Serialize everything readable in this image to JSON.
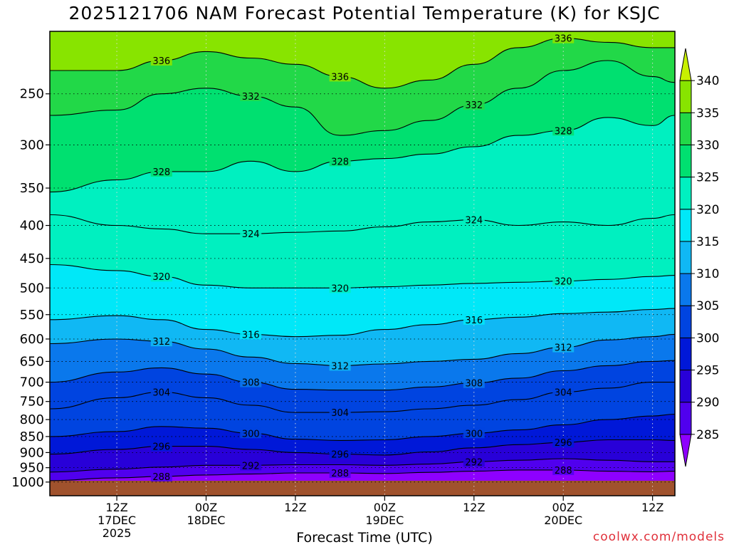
{
  "chart_data": {
    "type": "heatmap",
    "title": "2025121706 NAM Forecast Potential Temperature (K) for KSJC",
    "xlabel": "Forecast Time (UTC)",
    "ylabel": "",
    "y_scale": "log-pressure",
    "y_ticks": [
      250,
      300,
      350,
      400,
      450,
      500,
      550,
      600,
      650,
      700,
      750,
      800,
      850,
      900,
      950,
      1000
    ],
    "y_top_pressure": 200,
    "y_bottom_pressure": 1050,
    "x_range_hours": [
      -3,
      81
    ],
    "x_ticks": [
      {
        "hour": 6,
        "lines": [
          "12Z",
          "17DEC",
          "2025"
        ]
      },
      {
        "hour": 18,
        "lines": [
          "00Z",
          "18DEC"
        ]
      },
      {
        "hour": 30,
        "lines": [
          "12Z"
        ]
      },
      {
        "hour": 42,
        "lines": [
          "00Z",
          "19DEC"
        ]
      },
      {
        "hour": 54,
        "lines": [
          "12Z"
        ]
      },
      {
        "hour": 66,
        "lines": [
          "00Z",
          "20DEC"
        ]
      },
      {
        "hour": 78,
        "lines": [
          "12Z"
        ]
      }
    ],
    "grid": true,
    "colorbar": {
      "levels": [
        285,
        290,
        295,
        300,
        305,
        310,
        315,
        320,
        325,
        330,
        335,
        340
      ],
      "colors": [
        "#8e00ff",
        "#5000ee",
        "#2800d8",
        "#0018d8",
        "#0044e0",
        "#0a78ec",
        "#10b8f4",
        "#00e8f8",
        "#00f0c0",
        "#00e070",
        "#22d848",
        "#88e400",
        "#c8f000"
      ]
    },
    "contours": [
      {
        "value": 288,
        "series": [
          [
            -3,
            995
          ],
          [
            6,
            985
          ],
          [
            12,
            980
          ],
          [
            18,
            975
          ],
          [
            24,
            972
          ],
          [
            30,
            968
          ],
          [
            36,
            968
          ],
          [
            42,
            970
          ],
          [
            48,
            966
          ],
          [
            54,
            962
          ],
          [
            60,
            958
          ],
          [
            66,
            958
          ],
          [
            72,
            962
          ],
          [
            78,
            964
          ],
          [
            81,
            962
          ]
        ]
      },
      {
        "value": 292,
        "series": [
          [
            -3,
            965
          ],
          [
            6,
            955
          ],
          [
            12,
            948
          ],
          [
            18,
            942
          ],
          [
            24,
            942
          ],
          [
            30,
            940
          ],
          [
            36,
            940
          ],
          [
            42,
            942
          ],
          [
            48,
            938
          ],
          [
            54,
            930
          ],
          [
            60,
            925
          ],
          [
            66,
            920
          ],
          [
            72,
            925
          ],
          [
            78,
            930
          ],
          [
            81,
            930
          ]
        ]
      },
      {
        "value": 296,
        "series": [
          [
            -3,
            905
          ],
          [
            6,
            890
          ],
          [
            12,
            880
          ],
          [
            18,
            880
          ],
          [
            24,
            890
          ],
          [
            30,
            900
          ],
          [
            36,
            905
          ],
          [
            42,
            908
          ],
          [
            48,
            898
          ],
          [
            54,
            885
          ],
          [
            60,
            875
          ],
          [
            66,
            868
          ],
          [
            72,
            860
          ],
          [
            78,
            860
          ],
          [
            81,
            862
          ]
        ]
      },
      {
        "value": 300,
        "series": [
          [
            -3,
            850
          ],
          [
            6,
            835
          ],
          [
            12,
            820
          ],
          [
            18,
            825
          ],
          [
            24,
            840
          ],
          [
            30,
            858
          ],
          [
            36,
            862
          ],
          [
            42,
            860
          ],
          [
            48,
            850
          ],
          [
            54,
            840
          ],
          [
            60,
            830
          ],
          [
            66,
            815
          ],
          [
            72,
            800
          ],
          [
            78,
            790
          ],
          [
            81,
            785
          ]
        ]
      },
      {
        "value": 304,
        "series": [
          [
            -3,
            770
          ],
          [
            6,
            740
          ],
          [
            12,
            725
          ],
          [
            18,
            740
          ],
          [
            24,
            760
          ],
          [
            30,
            780
          ],
          [
            36,
            780
          ],
          [
            42,
            778
          ],
          [
            48,
            770
          ],
          [
            54,
            760
          ],
          [
            60,
            745
          ],
          [
            66,
            725
          ],
          [
            72,
            715
          ],
          [
            78,
            700
          ],
          [
            81,
            700
          ]
        ]
      },
      {
        "value": 308,
        "series": [
          [
            -3,
            700
          ],
          [
            6,
            675
          ],
          [
            12,
            665
          ],
          [
            18,
            680
          ],
          [
            24,
            700
          ],
          [
            30,
            718
          ],
          [
            36,
            720
          ],
          [
            42,
            720
          ],
          [
            48,
            712
          ],
          [
            54,
            702
          ],
          [
            60,
            690
          ],
          [
            66,
            672
          ],
          [
            72,
            660
          ],
          [
            78,
            650
          ],
          [
            81,
            648
          ]
        ]
      },
      {
        "value": 312,
        "series": [
          [
            -3,
            610
          ],
          [
            6,
            600
          ],
          [
            12,
            605
          ],
          [
            18,
            622
          ],
          [
            24,
            640
          ],
          [
            30,
            655
          ],
          [
            36,
            660
          ],
          [
            42,
            656
          ],
          [
            48,
            650
          ],
          [
            54,
            645
          ],
          [
            60,
            632
          ],
          [
            66,
            618
          ],
          [
            72,
            602
          ],
          [
            78,
            595
          ],
          [
            81,
            590
          ]
        ]
      },
      {
        "value": 316,
        "series": [
          [
            -3,
            560
          ],
          [
            6,
            552
          ],
          [
            12,
            560
          ],
          [
            18,
            580
          ],
          [
            24,
            590
          ],
          [
            30,
            595
          ],
          [
            36,
            592
          ],
          [
            42,
            580
          ],
          [
            48,
            570
          ],
          [
            54,
            560
          ],
          [
            60,
            555
          ],
          [
            66,
            548
          ],
          [
            72,
            545
          ],
          [
            78,
            540
          ],
          [
            81,
            538
          ]
        ]
      },
      {
        "value": 320,
        "series": [
          [
            -3,
            460
          ],
          [
            6,
            470
          ],
          [
            12,
            480
          ],
          [
            18,
            495
          ],
          [
            24,
            500
          ],
          [
            30,
            500
          ],
          [
            36,
            500
          ],
          [
            42,
            498
          ],
          [
            48,
            495
          ],
          [
            54,
            492
          ],
          [
            60,
            490
          ],
          [
            66,
            488
          ],
          [
            72,
            485
          ],
          [
            78,
            480
          ],
          [
            81,
            478
          ]
        ]
      },
      {
        "value": 324,
        "series": [
          [
            -3,
            385
          ],
          [
            6,
            400
          ],
          [
            12,
            405
          ],
          [
            18,
            412
          ],
          [
            24,
            412
          ],
          [
            30,
            410
          ],
          [
            36,
            408
          ],
          [
            42,
            402
          ],
          [
            48,
            395
          ],
          [
            54,
            392
          ],
          [
            60,
            400
          ],
          [
            66,
            395
          ],
          [
            72,
            400
          ],
          [
            78,
            390
          ],
          [
            81,
            385
          ]
        ]
      },
      {
        "value": 328,
        "series": [
          [
            -3,
            355
          ],
          [
            6,
            340
          ],
          [
            12,
            330
          ],
          [
            18,
            330
          ],
          [
            24,
            318
          ],
          [
            30,
            330
          ],
          [
            36,
            318
          ],
          [
            42,
            315
          ],
          [
            48,
            310
          ],
          [
            54,
            302
          ],
          [
            60,
            290
          ],
          [
            66,
            285
          ],
          [
            72,
            272
          ],
          [
            78,
            280
          ],
          [
            81,
            270
          ]
        ]
      },
      {
        "value": 332,
        "series": [
          [
            -3,
            270
          ],
          [
            6,
            265
          ],
          [
            12,
            250
          ],
          [
            18,
            245
          ],
          [
            24,
            252
          ],
          [
            30,
            262
          ],
          [
            36,
            290
          ],
          [
            42,
            285
          ],
          [
            48,
            275
          ],
          [
            54,
            260
          ],
          [
            60,
            245
          ],
          [
            66,
            230
          ],
          [
            72,
            222
          ],
          [
            78,
            235
          ],
          [
            81,
            240
          ]
        ]
      },
      {
        "value": 336,
        "series": [
          [
            -3,
            230
          ],
          [
            6,
            230
          ],
          [
            12,
            222
          ],
          [
            18,
            215
          ],
          [
            24,
            220
          ],
          [
            30,
            225
          ],
          [
            36,
            235
          ],
          [
            42,
            245
          ],
          [
            48,
            238
          ],
          [
            54,
            225
          ],
          [
            60,
            212
          ],
          [
            66,
            205
          ],
          [
            72,
            208
          ],
          [
            78,
            212
          ],
          [
            81,
            212
          ]
        ]
      }
    ]
  },
  "header": {
    "title": "2025121706 NAM Forecast Potential Temperature (K) for KSJC"
  },
  "axis": {
    "xlabel": "Forecast Time (UTC)"
  },
  "footer": {
    "credit": "coolwx.com/models"
  }
}
